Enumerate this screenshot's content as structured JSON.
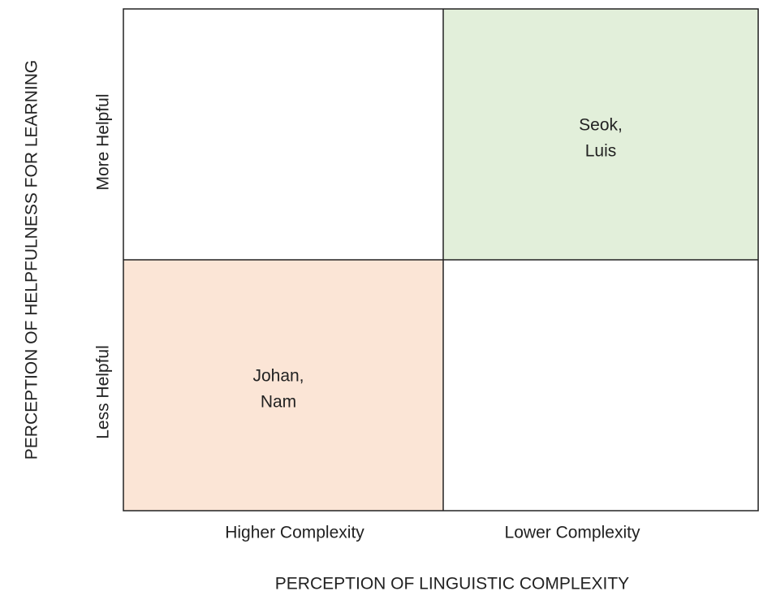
{
  "y_axis": {
    "title": "PERCEPTION OF HELPFULNESS FOR LEARNING",
    "labels": [
      "More Helpful",
      "Less Helpful"
    ]
  },
  "x_axis": {
    "title": "PERCEPTION OF LINGUISTIC COMPLEXITY",
    "labels": [
      "Higher Complexity",
      "Lower Complexity"
    ]
  },
  "cells": [
    {
      "lines": [
        "Seok,",
        "Luis"
      ]
    },
    {
      "lines": [
        "Johan,",
        "Nam"
      ]
    }
  ]
}
